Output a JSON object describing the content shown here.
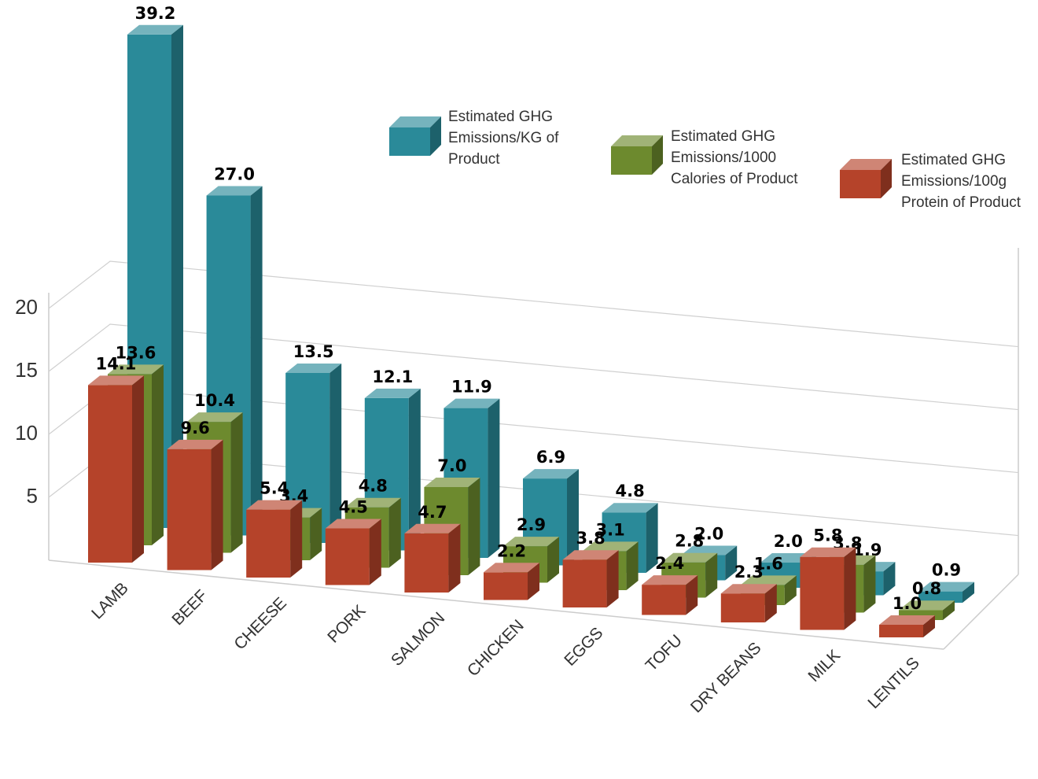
{
  "chart_data": {
    "type": "bar3d",
    "categories": [
      "LAMB",
      "BEEF",
      "CHEESE",
      "PORK",
      "SALMON",
      "CHICKEN",
      "EGGS",
      "TOFU",
      "DRY BEANS",
      "MILK",
      "LENTILS"
    ],
    "series": [
      {
        "name": "Estimated GHG Emissions/KG of Product",
        "color": "#2a8a99",
        "values": [
          39.2,
          27.0,
          13.5,
          12.1,
          11.9,
          6.9,
          4.8,
          2.0,
          2.0,
          1.9,
          0.9
        ],
        "value_labels": [
          "39.2",
          "27.0",
          "13.5",
          "12.1",
          "11.9",
          "6.9",
          "4.8",
          "2.0",
          "2.0",
          "1.9",
          "0.9"
        ]
      },
      {
        "name": "Estimated GHG Emissions/1000 Calories of Product",
        "color": "#6d8a2e",
        "values": [
          13.6,
          10.4,
          3.4,
          4.8,
          7.0,
          2.9,
          3.1,
          2.8,
          1.6,
          3.8,
          0.8
        ],
        "value_labels": [
          "13.6",
          "10.4",
          "3.4",
          "4.8",
          "7.0",
          "2.9",
          "3.1",
          "2.8",
          "1.6",
          "3.8",
          "0.8"
        ]
      },
      {
        "name": "Estimated GHG Emissions/100g Protein of Product",
        "color": "#b5432a",
        "values": [
          14.1,
          9.6,
          5.4,
          4.5,
          4.7,
          2.2,
          3.8,
          2.4,
          2.3,
          5.8,
          1.0
        ],
        "value_labels": [
          "14.1",
          "9.6",
          "5.4",
          "4.5",
          "4.7",
          "2.2",
          "3.8",
          "2.4",
          "2.3",
          "5.8",
          "1.0"
        ]
      }
    ],
    "ylim": [
      0,
      20
    ],
    "yticks": [
      5,
      10,
      15,
      20
    ],
    "grid": true
  }
}
